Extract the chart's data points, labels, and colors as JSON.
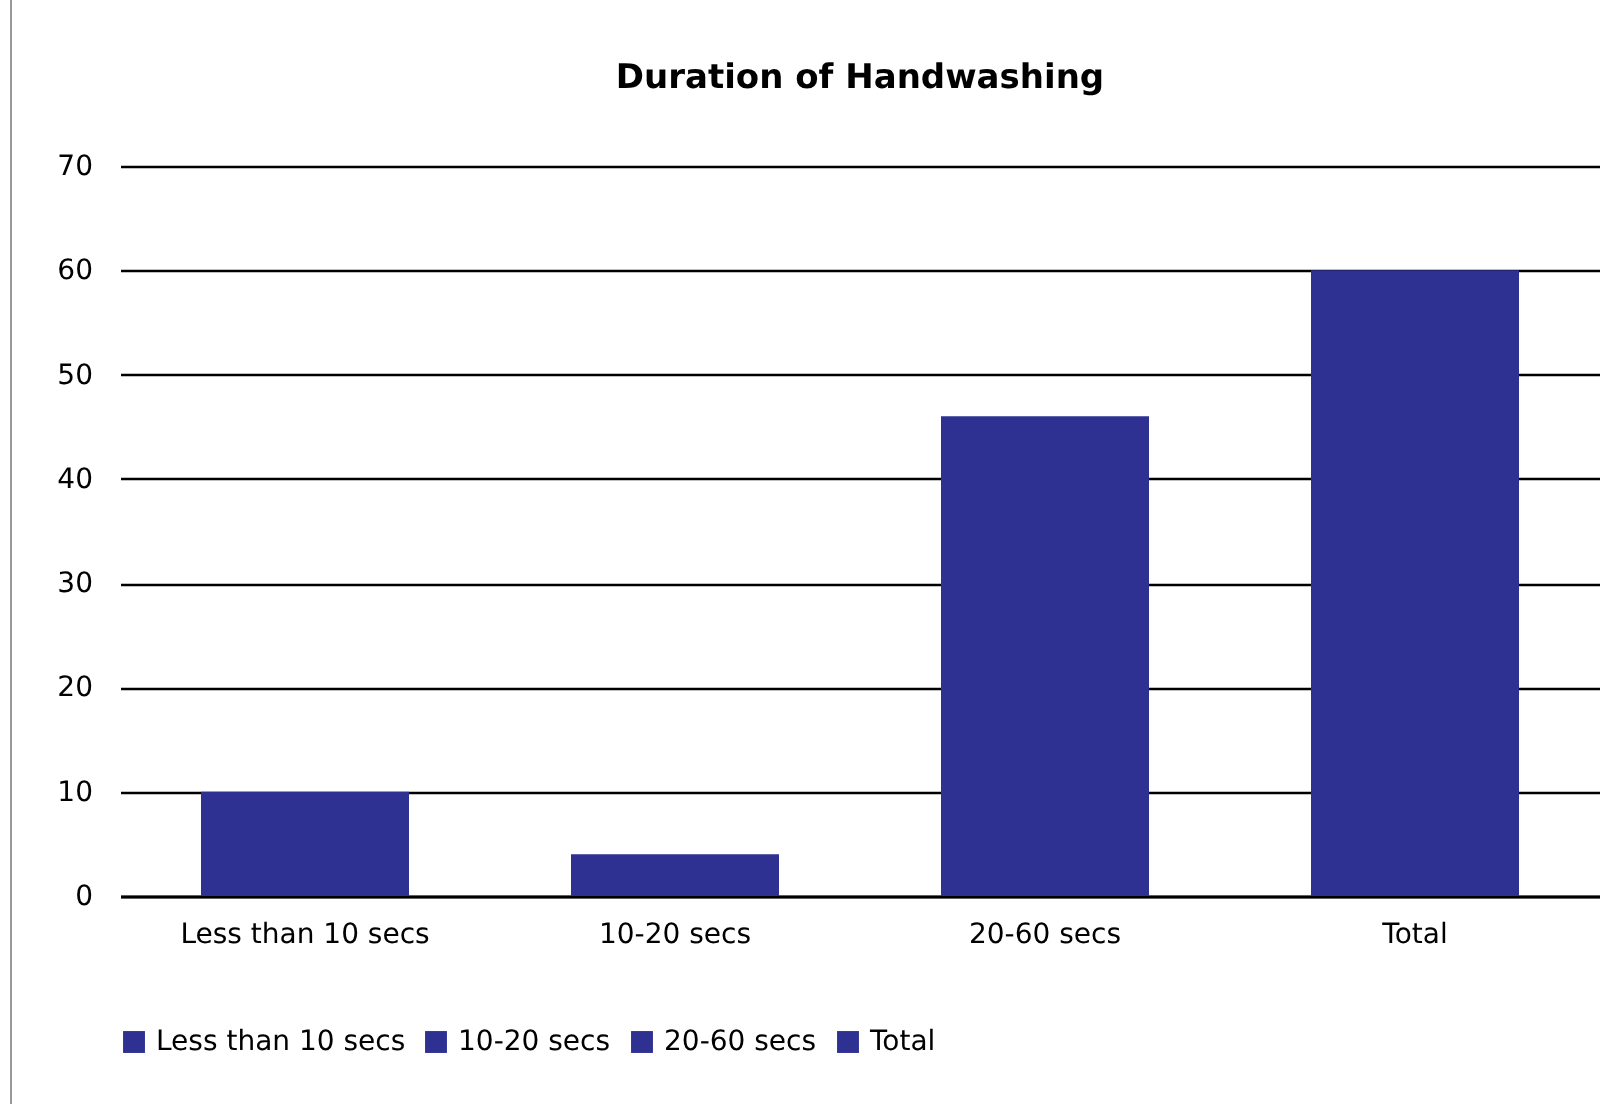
{
  "chart_data": {
    "type": "bar",
    "title": "Duration of Handwashing",
    "categories": [
      "Less than 10 secs",
      "10-20 secs",
      "20-60 secs",
      "Total"
    ],
    "series": [
      {
        "name": "Less than 10 secs",
        "color": "#2e3192",
        "values": [
          10,
          null,
          null,
          null
        ]
      },
      {
        "name": "10-20 secs",
        "color": "#2e3192",
        "values": [
          null,
          4,
          null,
          null
        ]
      },
      {
        "name": "20-60 secs",
        "color": "#2e3192",
        "values": [
          null,
          null,
          46,
          null
        ]
      },
      {
        "name": "Total",
        "color": "#2e3192",
        "values": [
          null,
          null,
          null,
          60
        ]
      }
    ],
    "ylim": [
      0,
      70
    ],
    "yticks": [
      0,
      10,
      20,
      30,
      40,
      50,
      60,
      70
    ],
    "grid": "y",
    "legend": "bottom"
  }
}
